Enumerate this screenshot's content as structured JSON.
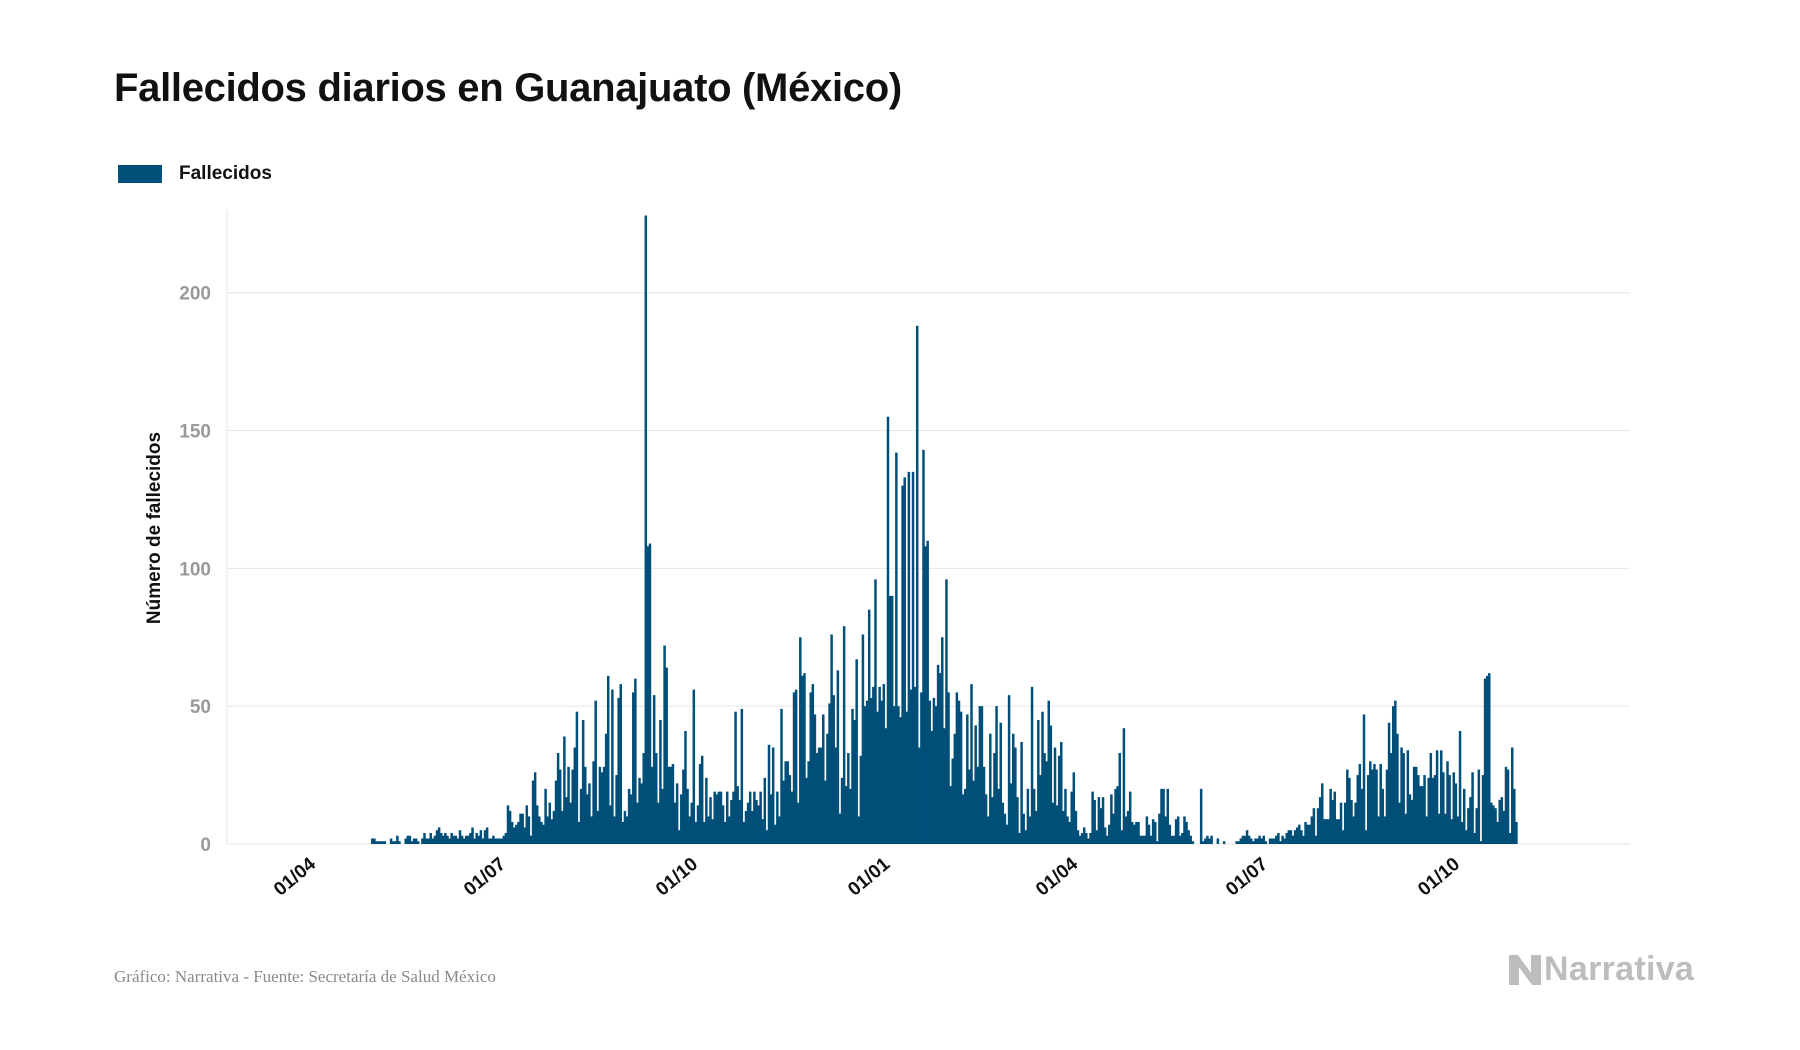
{
  "title": "Fallecidos diarios en Guanajuato (México)",
  "footer": "Gráfico: Narrativa - Fuente: Secretaría de Salud México",
  "logo": {
    "text": "Narrativa",
    "icon": "narrativa-n-logo"
  },
  "colors": {
    "bar": "#004f79",
    "grid": "#e6e6e6",
    "tick": "#999999",
    "axis_title": "#111111",
    "logo": "#bdbdbd"
  },
  "chart_data": {
    "type": "bar",
    "series": [
      {
        "name": "Fallecidos"
      }
    ],
    "ylabel": "Número de fallecidos",
    "ylim": [
      0,
      230
    ],
    "yticks": [
      0,
      50,
      100,
      150,
      200
    ],
    "xlim": [
      "2020-02-18",
      "2021-12-21"
    ],
    "xticks": [
      {
        "date": "2020-04-01",
        "label": "01/04"
      },
      {
        "date": "2020-07-01",
        "label": "01/07"
      },
      {
        "date": "2020-10-01",
        "label": "01/10"
      },
      {
        "date": "2021-01-01",
        "label": "01/01"
      },
      {
        "date": "2021-04-01",
        "label": "01/04"
      },
      {
        "date": "2021-07-01",
        "label": "01/07"
      },
      {
        "date": "2021-10-01",
        "label": "01/10"
      }
    ],
    "grid": true,
    "legend": "top-left",
    "start_date": "2020-03-05",
    "values": [
      0,
      0,
      0,
      0,
      0,
      0,
      0,
      0,
      0,
      0,
      0,
      0,
      0,
      0,
      0,
      0,
      0,
      0,
      0,
      0,
      0,
      0,
      0,
      0,
      0,
      0,
      0,
      0,
      0,
      0,
      0,
      0,
      0,
      0,
      0,
      0,
      0,
      0,
      0,
      0,
      0,
      0,
      0,
      0,
      0,
      0,
      0,
      0,
      0,
      0,
      0,
      0,
      0,
      2,
      2,
      1,
      1,
      1,
      1,
      1,
      0,
      0,
      2,
      1,
      1,
      3,
      1,
      0,
      0,
      2,
      3,
      3,
      1,
      2,
      2,
      1,
      0,
      2,
      4,
      2,
      2,
      4,
      2,
      3,
      5,
      6,
      4,
      3,
      4,
      3,
      2,
      4,
      3,
      3,
      2,
      5,
      3,
      2,
      3,
      3,
      4,
      6,
      2,
      4,
      3,
      5,
      2,
      5,
      6,
      2,
      2,
      3,
      2,
      2,
      2,
      2,
      3,
      4,
      14,
      12,
      8,
      6,
      7,
      8,
      11,
      11,
      6,
      14,
      10,
      3,
      23,
      26,
      14,
      10,
      8,
      7,
      20,
      10,
      15,
      9,
      12,
      23,
      33,
      27,
      12,
      39,
      17,
      28,
      15,
      27,
      35,
      48,
      8,
      20,
      45,
      28,
      18,
      22,
      10,
      30,
      52,
      12,
      28,
      26,
      28,
      40,
      61,
      14,
      56,
      10,
      25,
      53,
      58,
      8,
      12,
      10,
      20,
      18,
      55,
      60,
      15,
      24,
      22,
      33,
      228,
      108,
      109,
      28,
      54,
      33,
      15,
      45,
      20,
      72,
      64,
      28,
      28,
      29,
      15,
      22,
      5,
      18,
      27,
      41,
      20,
      10,
      15,
      56,
      8,
      14,
      29,
      32,
      8,
      24,
      10,
      17,
      9,
      19,
      18,
      19,
      19,
      14,
      8,
      19,
      10,
      16,
      19,
      48,
      21,
      16,
      49,
      8,
      12,
      15,
      19,
      12,
      19,
      16,
      14,
      19,
      9,
      24,
      5,
      36,
      18,
      35,
      7,
      19,
      10,
      49,
      23,
      30,
      30,
      25,
      19,
      55,
      56,
      15,
      75,
      61,
      62,
      24,
      30,
      55,
      58,
      47,
      33,
      35,
      35,
      47,
      23,
      40,
      51,
      76,
      54,
      35,
      63,
      11,
      24,
      79,
      21,
      33,
      20,
      49,
      45,
      67,
      10,
      32,
      76,
      50,
      52,
      85,
      53,
      57,
      96,
      48,
      57,
      52,
      58,
      42,
      155,
      90,
      90,
      50,
      142,
      50,
      46,
      130,
      133,
      48,
      135,
      56,
      135,
      57,
      188,
      35,
      55,
      143,
      108,
      110,
      52,
      41,
      53,
      50,
      65,
      62,
      75,
      42,
      96,
      55,
      21,
      31,
      40,
      55,
      52,
      48,
      18,
      20,
      47,
      27,
      58,
      23,
      43,
      28,
      50,
      50,
      28,
      18,
      10,
      40,
      17,
      33,
      50,
      20,
      44,
      15,
      11,
      7,
      54,
      22,
      40,
      35,
      17,
      4,
      37,
      11,
      5,
      20,
      10,
      57,
      20,
      12,
      45,
      25,
      48,
      33,
      30,
      52,
      43,
      15,
      35,
      14,
      32,
      37,
      12,
      20,
      10,
      8,
      19,
      26,
      12,
      5,
      3,
      4,
      6,
      4,
      2,
      4,
      19,
      16,
      5,
      17,
      13,
      17,
      6,
      3,
      7,
      18,
      11,
      20,
      21,
      33,
      5,
      42,
      10,
      12,
      19,
      8,
      7,
      8,
      8,
      3,
      3,
      3,
      10,
      7,
      3,
      9,
      8,
      1,
      11,
      20,
      20,
      10,
      20,
      7,
      3,
      3,
      9,
      10,
      3,
      4,
      10,
      8,
      5,
      3,
      1,
      0,
      0,
      0,
      20,
      1,
      2,
      3,
      2,
      3,
      0,
      0,
      2,
      0,
      0,
      1,
      0,
      0,
      0,
      0,
      0,
      1,
      1,
      2,
      3,
      3,
      5,
      3,
      2,
      1,
      2,
      2,
      3,
      2,
      3,
      1,
      0,
      2,
      2,
      2,
      3,
      4,
      1,
      3,
      2,
      4,
      5,
      5,
      3,
      5,
      6,
      7,
      5,
      3,
      8,
      7,
      7,
      10,
      13,
      3,
      13,
      17,
      22,
      9,
      9,
      9,
      20,
      16,
      19,
      9,
      9,
      15,
      5,
      15,
      27,
      24,
      16,
      10,
      15,
      25,
      29,
      20,
      47,
      5,
      25,
      30,
      27,
      29,
      27,
      10,
      29,
      20,
      10,
      27,
      44,
      33,
      50,
      52,
      40,
      15,
      35,
      33,
      11,
      34,
      18,
      16,
      28,
      28,
      25,
      21,
      21,
      25,
      10,
      24,
      33,
      24,
      25,
      34,
      11,
      34,
      26,
      11,
      30,
      25,
      9,
      26,
      22,
      10,
      41,
      8,
      20,
      5,
      13,
      17,
      26,
      4,
      13,
      27,
      1,
      25,
      60,
      61,
      62,
      15,
      14,
      13,
      8,
      16,
      17,
      12,
      28,
      27,
      4,
      35,
      20,
      8
    ]
  }
}
